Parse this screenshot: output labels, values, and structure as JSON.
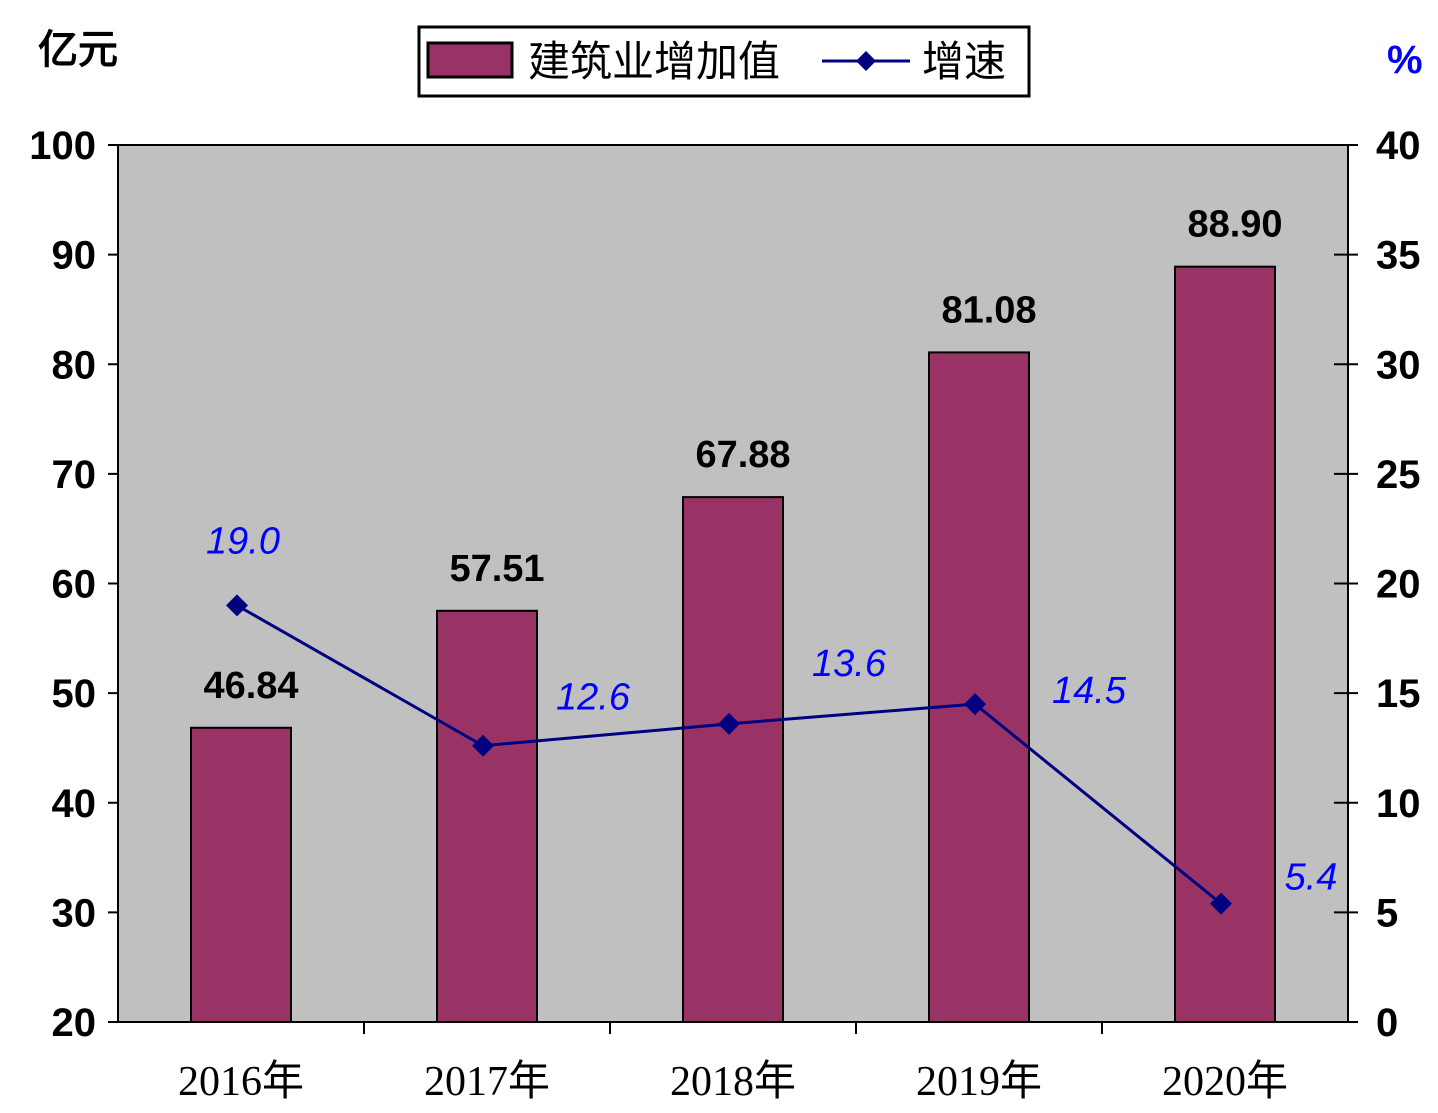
{
  "chart_data": {
    "type": "bar",
    "categories": [
      "2016年",
      "2017年",
      "2018年",
      "2019年",
      "2020年"
    ],
    "series": [
      {
        "name": "建筑业增加值",
        "type": "bar",
        "axis": "left",
        "values": [
          46.84,
          57.51,
          67.88,
          81.08,
          88.9
        ],
        "labels": [
          "46.84",
          "57.51",
          "67.88",
          "81.08",
          "88.90"
        ]
      },
      {
        "name": "增速",
        "type": "line",
        "axis": "right",
        "values": [
          19.0,
          12.6,
          13.6,
          14.5,
          5.4
        ],
        "labels": [
          "19.0",
          "12.6",
          "13.6",
          "14.5",
          "5.4"
        ]
      }
    ],
    "ylabel": "亿元",
    "y2label": "%",
    "ylim": [
      20,
      100
    ],
    "y2lim": [
      0,
      40
    ],
    "yticks": [
      "20",
      "30",
      "40",
      "50",
      "60",
      "70",
      "80",
      "90",
      "100"
    ],
    "y2ticks": [
      "0",
      "5",
      "10",
      "15",
      "20",
      "25",
      "30",
      "35",
      "40"
    ],
    "grid": false,
    "legend_position": "top-center",
    "colors": {
      "bar": "#993366",
      "line": "#000080",
      "rate_label": "#0000ff",
      "plot_background": "#c0c0c0"
    }
  }
}
